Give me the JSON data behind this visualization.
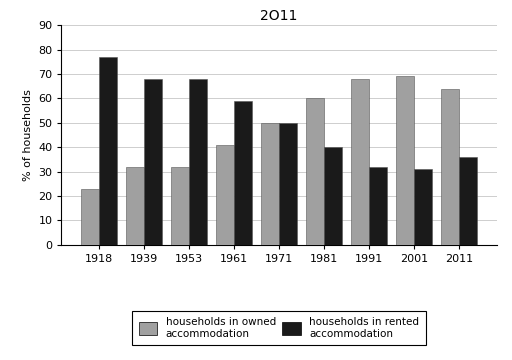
{
  "title": "2O11",
  "ylabel": "% of households",
  "years": [
    "1918",
    "1939",
    "1953",
    "1961",
    "1971",
    "1981",
    "1991",
    "2001",
    "2011"
  ],
  "owned": [
    23,
    32,
    32,
    41,
    50,
    60,
    68,
    69,
    64
  ],
  "rented": [
    77,
    68,
    68,
    59,
    50,
    40,
    32,
    31,
    36
  ],
  "owned_color": "#a0a0a0",
  "rented_color": "#1a1a1a",
  "ylim": [
    0,
    90
  ],
  "yticks": [
    0,
    10,
    20,
    30,
    40,
    50,
    60,
    70,
    80,
    90
  ],
  "legend_owned": "households in owned\naccommodation",
  "legend_rented": "households in rented\naccommodation",
  "bar_width": 0.4,
  "background_color": "#ffffff",
  "grid_color": "#bbbbbb",
  "title_fontsize": 10,
  "axis_fontsize": 8,
  "ylabel_fontsize": 8
}
